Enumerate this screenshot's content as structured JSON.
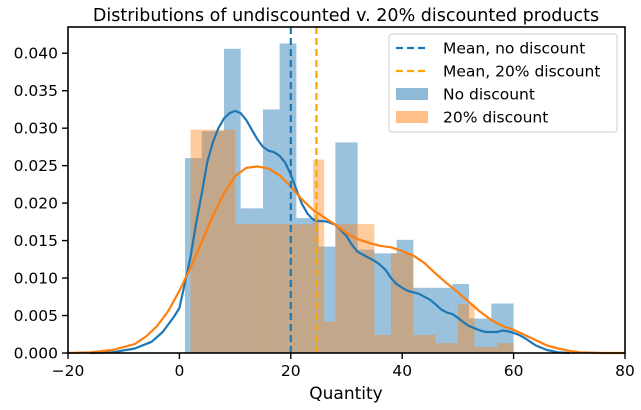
{
  "chart_data": {
    "type": "histogram+kde",
    "title": "Distributions of undiscounted v. 20% discounted products",
    "xlabel": "Quantity",
    "ylabel": "",
    "xlim": [
      -20,
      80
    ],
    "ylim": [
      0,
      0.0435
    ],
    "x_ticks": [
      -20,
      0,
      20,
      40,
      60,
      80
    ],
    "y_ticks": [
      0.0,
      0.005,
      0.01,
      0.015,
      0.02,
      0.025,
      0.03,
      0.035,
      0.04
    ],
    "x_tick_labels": [
      "−20",
      "0",
      "20",
      "40",
      "60",
      "80"
    ],
    "y_tick_labels": [
      "0.000",
      "0.005",
      "0.010",
      "0.015",
      "0.020",
      "0.025",
      "0.030",
      "0.035",
      "0.040"
    ],
    "grid": false,
    "legend_placement": "top-right",
    "colors": {
      "no_discount": "#1f77b4",
      "discount": "#ff7f0e",
      "discount_mean": "#ffa500",
      "hist_no_discount": "#8fbbd9",
      "hist_discount": "#ffbf87"
    },
    "series": [
      {
        "name": "No discount",
        "kind": "histogram",
        "bins": [
          {
            "x0": 1,
            "x1": 4,
            "y": 0.026
          },
          {
            "x0": 4,
            "x1": 8,
            "y": 0.0296
          },
          {
            "x0": 8,
            "x1": 11,
            "y": 0.0406
          },
          {
            "x0": 11,
            "x1": 15,
            "y": 0.0193
          },
          {
            "x0": 15,
            "x1": 18,
            "y": 0.0325
          },
          {
            "x0": 18,
            "x1": 21,
            "y": 0.0413
          },
          {
            "x0": 21,
            "x1": 25,
            "y": 0.018
          },
          {
            "x0": 25,
            "x1": 28,
            "y": 0.0142
          },
          {
            "x0": 28,
            "x1": 32,
            "y": 0.0281
          },
          {
            "x0": 32,
            "x1": 35,
            "y": 0.0138
          },
          {
            "x0": 35,
            "x1": 39,
            "y": 0.0133
          },
          {
            "x0": 39,
            "x1": 42,
            "y": 0.0151
          },
          {
            "x0": 42,
            "x1": 45,
            "y": 0.0087
          },
          {
            "x0": 45,
            "x1": 49,
            "y": 0.0087
          },
          {
            "x0": 49,
            "x1": 52,
            "y": 0.0092
          },
          {
            "x0": 52,
            "x1": 56,
            "y": 0.0046
          },
          {
            "x0": 56,
            "x1": 60,
            "y": 0.0066
          }
        ]
      },
      {
        "name": "20% discount",
        "kind": "histogram",
        "bins": [
          {
            "x0": 2,
            "x1": 10,
            "y": 0.0298
          },
          {
            "x0": 10,
            "x1": 24,
            "y": 0.0172
          },
          {
            "x0": 24,
            "x1": 26,
            "y": 0.0258
          },
          {
            "x0": 26,
            "x1": 28,
            "y": 0.0042
          },
          {
            "x0": 28,
            "x1": 32,
            "y": 0.0172
          },
          {
            "x0": 32,
            "x1": 35,
            "y": 0.0172
          },
          {
            "x0": 35,
            "x1": 38,
            "y": 0.0024
          },
          {
            "x0": 38,
            "x1": 42,
            "y": 0.0133
          },
          {
            "x0": 42,
            "x1": 46,
            "y": 0.0024
          },
          {
            "x0": 46,
            "x1": 50,
            "y": 0.0013
          },
          {
            "x0": 50,
            "x1": 53,
            "y": 0.0065
          },
          {
            "x0": 53,
            "x1": 57,
            "y": 0.0008
          },
          {
            "x0": 57,
            "x1": 60,
            "y": 0.0013
          }
        ]
      },
      {
        "name": "No discount",
        "kind": "kde",
        "x": [
          -16,
          -12,
          -8,
          -5,
          -3,
          -1,
          0,
          1,
          2,
          3,
          4,
          5,
          6,
          7,
          8,
          9,
          10,
          11,
          12,
          13,
          14,
          15,
          16,
          17,
          18,
          19,
          20,
          21,
          22,
          23,
          24,
          25,
          26,
          27,
          28,
          29,
          30,
          31,
          32,
          33,
          34,
          35,
          36,
          37,
          38,
          39,
          40,
          41,
          42,
          43,
          44,
          45,
          46,
          47,
          48,
          49,
          50,
          51,
          52,
          53,
          54,
          55,
          56,
          57,
          58,
          59,
          60,
          61,
          62,
          63,
          64,
          66,
          68,
          70
        ],
        "y": [
          0.0,
          0.0001,
          0.0006,
          0.0015,
          0.0028,
          0.0048,
          0.006,
          0.0094,
          0.0128,
          0.0173,
          0.0212,
          0.0255,
          0.0281,
          0.03,
          0.0313,
          0.032,
          0.0323,
          0.032,
          0.0311,
          0.0298,
          0.0285,
          0.0275,
          0.027,
          0.0268,
          0.0263,
          0.0254,
          0.0238,
          0.0218,
          0.0199,
          0.0186,
          0.0178,
          0.0176,
          0.0176,
          0.0174,
          0.0171,
          0.0164,
          0.0156,
          0.0144,
          0.0135,
          0.0131,
          0.0127,
          0.0123,
          0.0118,
          0.0111,
          0.01,
          0.0092,
          0.0087,
          0.0083,
          0.0081,
          0.0079,
          0.0075,
          0.0071,
          0.0065,
          0.0058,
          0.0054,
          0.0052,
          0.0047,
          0.0041,
          0.0036,
          0.0033,
          0.003,
          0.0028,
          0.0028,
          0.0028,
          0.003,
          0.0029,
          0.0027,
          0.0024,
          0.002,
          0.0015,
          0.001,
          0.0004,
          0.0001,
          0.0
        ]
      },
      {
        "name": "20% discount",
        "kind": "kde",
        "x": [
          -20,
          -16,
          -12,
          -8,
          -6,
          -4,
          -2,
          0,
          2,
          4,
          6,
          8,
          10,
          12,
          14,
          16,
          18,
          20,
          22,
          24,
          26,
          28,
          30,
          32,
          34,
          36,
          38,
          40,
          42,
          44,
          46,
          48,
          50,
          52,
          54,
          56,
          58,
          60,
          62,
          64,
          66,
          68,
          70,
          72,
          76,
          80
        ],
        "y": [
          0.0,
          0.0001,
          0.0004,
          0.0012,
          0.0022,
          0.0036,
          0.0056,
          0.0083,
          0.0114,
          0.0148,
          0.0183,
          0.0213,
          0.0236,
          0.0247,
          0.0249,
          0.0246,
          0.0237,
          0.0222,
          0.0205,
          0.0191,
          0.0181,
          0.0171,
          0.016,
          0.0152,
          0.0147,
          0.0143,
          0.0141,
          0.0136,
          0.013,
          0.012,
          0.0106,
          0.0093,
          0.0081,
          0.0068,
          0.0055,
          0.0044,
          0.0036,
          0.0031,
          0.0024,
          0.0017,
          0.001,
          0.0006,
          0.0003,
          0.0001,
          0.0,
          0.0
        ]
      },
      {
        "name": "Mean, no discount",
        "kind": "vline",
        "x": 20
      },
      {
        "name": "Mean, 20% discount",
        "kind": "vline",
        "x": 24.6
      }
    ],
    "legend": [
      {
        "label": "Mean, no discount",
        "style": "dashed-line",
        "color": "#1f77b4"
      },
      {
        "label": "Mean, 20% discount",
        "style": "dashed-line",
        "color": "#ffa500"
      },
      {
        "label": "No discount",
        "style": "patch",
        "color": "#8fbbd9"
      },
      {
        "label": "20% discount",
        "style": "patch",
        "color": "#ffbf87"
      }
    ]
  }
}
